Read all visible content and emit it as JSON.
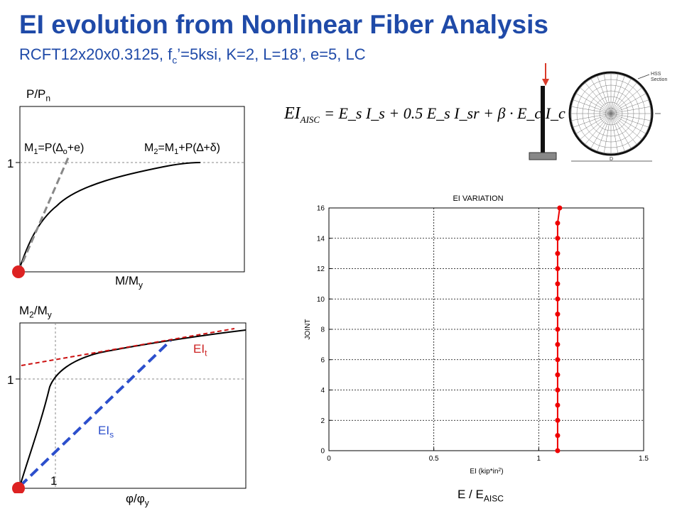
{
  "header": {
    "title": "EI evolution from Nonlinear Fiber Analysis",
    "subtitle_main": "RCFT12x20x0.3125, f",
    "subtitle_sub": "c",
    "subtitle_rest": "’=5ksi, K=2, L=18’, e=5, LC"
  },
  "formula": {
    "lhs": "EI",
    "lhs_sub": "AISC",
    "rhs": "= E_s I_s + 0.5 E_s I_sr + β · E_c I_c"
  },
  "section_diagram": {
    "label_hss": "HSS",
    "label_section": "Section",
    "label_dim": "D"
  },
  "plot_top": {
    "ylabel": "P/P",
    "ylabel_sub": "n",
    "xlabel": "M/M",
    "xlabel_sub": "y",
    "tick_one": "1",
    "ann_m1": "M",
    "ann_m1_sub": "1",
    "ann_m1_rest_a": "=P(",
    "ann_m1_delta": "∆",
    "ann_m1_delta_sub": "o",
    "ann_m1_rest_b": "+e)",
    "ann_m2": "M",
    "ann_m2_sub": "2",
    "ann_m2_rest_a": "=M",
    "ann_m2_sub2": "1",
    "ann_m2_rest_b": "+P(∆+δ)"
  },
  "plot_bottom": {
    "ylabel": "M",
    "ylabel_sub": "2",
    "ylabel_rest": "/M",
    "ylabel_sub2": "y",
    "xlabel": "φ/φ",
    "xlabel_sub": "y",
    "tick_one_y": "1",
    "tick_one_x": "1",
    "label_eit": "EI",
    "label_eit_sub": "t",
    "label_eis": "EI",
    "label_eis_sub": "s"
  },
  "chart_data": {
    "type": "scatter",
    "title": "EI VARIATION",
    "xlabel": "EI (kip*in",
    "xlabel_sup": "2",
    "xlabel_end": ")",
    "ylabel": "JOINT",
    "xlim": [
      0,
      1.5
    ],
    "ylim": [
      0,
      16
    ],
    "x_ticks": [
      "0",
      "0.5",
      "1",
      "1.5"
    ],
    "y_ticks": [
      "0",
      "2",
      "4",
      "6",
      "8",
      "10",
      "12",
      "14",
      "16"
    ],
    "grid": true,
    "series": [
      {
        "color": "#ee0000",
        "points": [
          {
            "x": 1.09,
            "y": 0
          },
          {
            "x": 1.09,
            "y": 1
          },
          {
            "x": 1.09,
            "y": 2
          },
          {
            "x": 1.09,
            "y": 3
          },
          {
            "x": 1.09,
            "y": 4
          },
          {
            "x": 1.09,
            "y": 5
          },
          {
            "x": 1.09,
            "y": 6
          },
          {
            "x": 1.09,
            "y": 7
          },
          {
            "x": 1.09,
            "y": 8
          },
          {
            "x": 1.09,
            "y": 9
          },
          {
            "x": 1.09,
            "y": 10
          },
          {
            "x": 1.09,
            "y": 11
          },
          {
            "x": 1.09,
            "y": 12
          },
          {
            "x": 1.09,
            "y": 13
          },
          {
            "x": 1.09,
            "y": 14
          },
          {
            "x": 1.09,
            "y": 15
          },
          {
            "x": 1.1,
            "y": 16
          }
        ]
      }
    ],
    "caption_main": "E / E",
    "caption_sub": "AISC"
  }
}
